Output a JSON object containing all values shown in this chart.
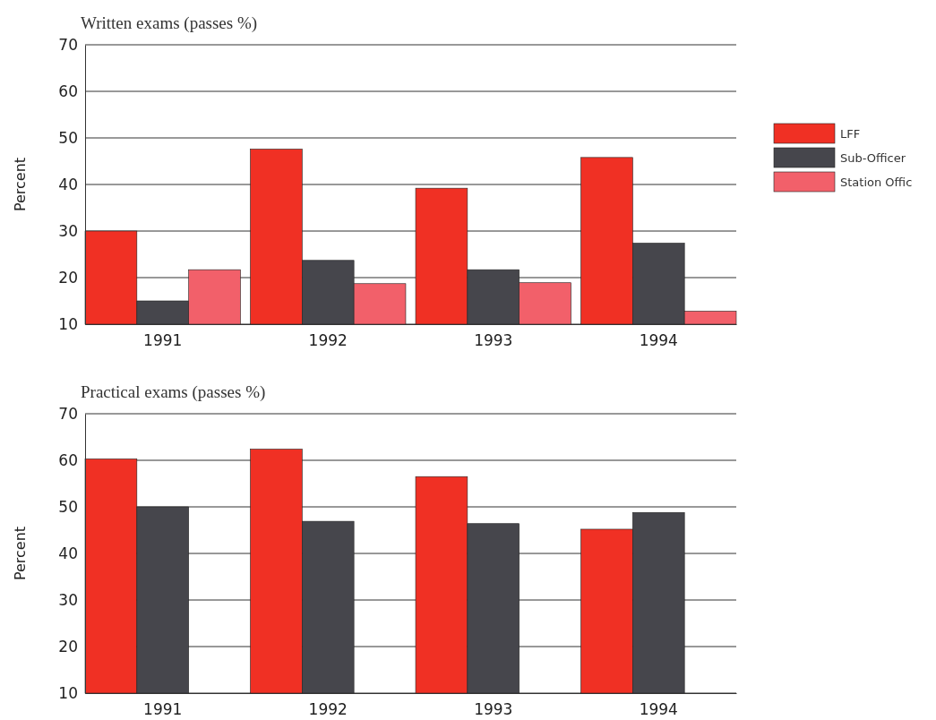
{
  "chart_data": [
    {
      "type": "bar",
      "title": "Written exams (passes %)",
      "ylabel": "Percent",
      "categories": [
        "1991",
        "1992",
        "1993",
        "1994"
      ],
      "series": [
        {
          "name": "LFF",
          "color": "#f03024",
          "values": [
            30,
            47.6,
            39.2,
            45.8
          ]
        },
        {
          "name": "Sub-Officer",
          "color": "#46464c",
          "values": [
            15,
            23.7,
            21.7,
            27.4
          ]
        },
        {
          "name": "Station Offic",
          "color": "#f2606a",
          "values": [
            21.7,
            18.7,
            18.9,
            12.8
          ]
        }
      ],
      "ylim": [
        10,
        70
      ],
      "yticks": [
        10,
        20,
        30,
        40,
        50,
        60,
        70
      ],
      "grid": "y",
      "legend": "right"
    },
    {
      "type": "bar",
      "title": "Practical exams (passes %)",
      "ylabel": "Percent",
      "categories": [
        "1991",
        "1992",
        "1993",
        "1994"
      ],
      "series": [
        {
          "color": "#f03024",
          "values": [
            60.3,
            62.4,
            56.5,
            45.2
          ]
        },
        {
          "color": "#46464c",
          "values": [
            50,
            46.9,
            46.4,
            48.8
          ]
        }
      ],
      "ylim": [
        10,
        70
      ],
      "yticks": [
        10,
        20,
        30,
        40,
        50,
        60,
        70
      ],
      "grid": "y"
    }
  ]
}
